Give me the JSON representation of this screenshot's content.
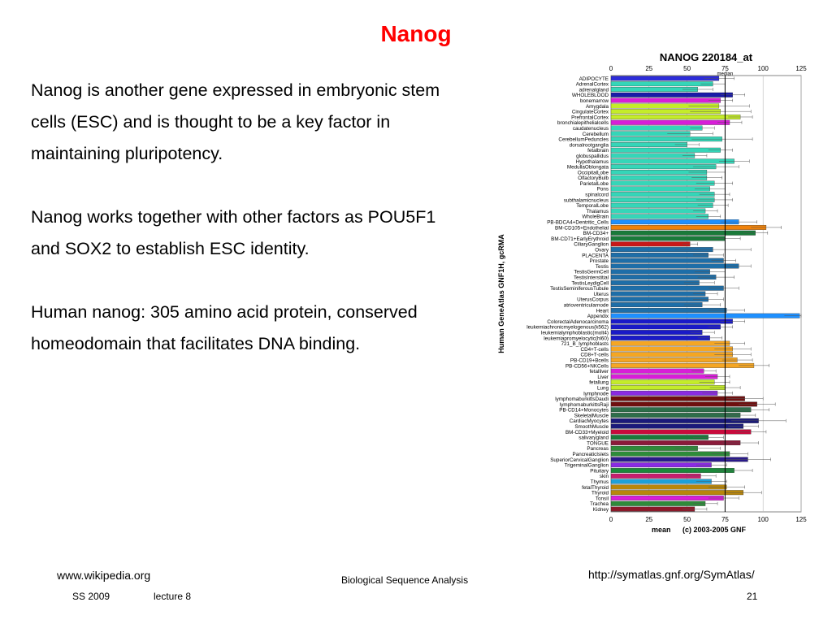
{
  "slide": {
    "title": "Nanog",
    "title_color": "#ff0000",
    "paragraphs": [
      "Nanog is another gene expressed in embryonic stem cells (ESC) and is thought to be a key factor in maintaining pluripotency.",
      "Nanog works together with other factors as POU5F1 and SOX2 to establish ESC identity.",
      "Human nanog: 305 amino acid protein, conserved homeodomain that facilitates DNA binding."
    ]
  },
  "footer": {
    "source_left": "www.wikipedia.org",
    "source_right": "http://symatlas.gnf.org/SymAtlas/",
    "course": "Biological Sequence Analysis",
    "semester": "SS 2009",
    "lecture": "lecture 8",
    "page": "21"
  },
  "chart_data": {
    "type": "bar",
    "orientation": "horizontal",
    "title": "NANOG 220184_at",
    "ylabel": "Human GeneAtlas GNF1H, gcRMA",
    "xlabel_mean": "mean",
    "copyright": "(c) 2003-2005 GNF",
    "median_label": "median",
    "median": 75,
    "xlim": [
      0,
      125
    ],
    "xticks": [
      0,
      25,
      50,
      75,
      100,
      125
    ],
    "grid": true,
    "categories": [
      "ADIPOCYTE",
      "AdrenalCortex",
      "adrenalgland",
      "WHOLEBLOOD",
      "bonemarrow",
      "Amygdala",
      "CingulateCortex",
      "PrefrontalCortex",
      "bronchialepithelialcells",
      "caudatenucleus",
      "Cerebellum",
      "CerebellumPeduncles",
      "dorsalrootganglia",
      "fetalbrain",
      "globuspallidus",
      "Hypothalamus",
      "MedullaOblongata",
      "OccipitalLobe",
      "OlfactoryBulb",
      "ParietalLobe",
      "Pons",
      "spinalcord",
      "subthalamicnucleus",
      "TemporalLobe",
      "Thalamus",
      "WholeBrain",
      "PB-BDCA4+Dentritic_Cells",
      "BM-CD105+Endothelial",
      "BM-CD34+",
      "BM-CD71+EarlyErythroid",
      "CiliaryGanglion",
      "Ovary",
      "PLACENTA",
      "Prostate",
      "Testis",
      "TestisGermCell",
      "TestisInterstitial",
      "TestisLeydigCell",
      "TestisSeminiferousTubule",
      "Uterus",
      "UterusCorpus",
      "atrioventricularnode",
      "Heart",
      "Appendix",
      "ColorectalAdenocarcinoma",
      "leukemiachronicmyelogenous(k562)",
      "leukemialymphoblastic(molt4)",
      "leukemiapromyelocytic(hl60)",
      "721_B_lymphoblasts",
      "CD4+T-cells",
      "CD8+T-cells",
      "PB-CD19+Bcells",
      "PB-CD56+NKCells",
      "fetalliver",
      "Liver",
      "fetallung",
      "Lung",
      "lymphnode",
      "lymphomaburkittsDaudi",
      "lymphomaburkittsRaji",
      "PB-CD14+Monocytes",
      "SkeletalMuscle",
      "CardiacMyocytes",
      "SmoothMuscle",
      "BM-CD33+Myeloid",
      "salivarygland",
      "TONGUE",
      "Pancreas",
      "PancreaticIslets",
      "SuperiorCervicalGanglion",
      "TrigeminalGanglion",
      "Pituitary",
      "skin",
      "Thymus",
      "fetalThyroid",
      "Thyroid",
      "Tonsil",
      "Trachea",
      "Kidney"
    ],
    "values": [
      71,
      67,
      57,
      80,
      72,
      71,
      72,
      85,
      78,
      60,
      52,
      73,
      50,
      72,
      55,
      81,
      69,
      63,
      63,
      68,
      65,
      68,
      68,
      67,
      62,
      64,
      84,
      102,
      95,
      75,
      52,
      67,
      64,
      74,
      84,
      65,
      69,
      58,
      74,
      62,
      64,
      60,
      76,
      124,
      80,
      72,
      60,
      65,
      78,
      80,
      80,
      83,
      94,
      61,
      70,
      68,
      75,
      70,
      88,
      96,
      92,
      85,
      97,
      87,
      92,
      64,
      85,
      57,
      78,
      90,
      66,
      81,
      59,
      66,
      76,
      87,
      74,
      62,
      55
    ],
    "errors": [
      10,
      8,
      10,
      8,
      8,
      20,
      20,
      8,
      8,
      8,
      15,
      20,
      8,
      8,
      8,
      10,
      15,
      12,
      10,
      12,
      10,
      10,
      12,
      10,
      8,
      8,
      12,
      10,
      8,
      10,
      5,
      25,
      10,
      8,
      8,
      10,
      12,
      10,
      10,
      8,
      10,
      12,
      12,
      10,
      8,
      8,
      8,
      8,
      10,
      12,
      12,
      10,
      10,
      8,
      8,
      10,
      10,
      10,
      12,
      12,
      12,
      10,
      18,
      10,
      10,
      10,
      12,
      15,
      12,
      15,
      10,
      12,
      10,
      10,
      12,
      12,
      10,
      8,
      8
    ],
    "colors": [
      "#2d2cd8",
      "#35d6b8",
      "#35d6b8",
      "#1a1aa8",
      "#d81ed8",
      "#c4ec2a",
      "#c4ec2a",
      "#c4ec2a",
      "#d81ed8",
      "#35d6b8",
      "#35d6b8",
      "#35d6b8",
      "#35d6b8",
      "#35d6b8",
      "#35d6b8",
      "#35d6b8",
      "#35d6b8",
      "#35d6b8",
      "#35d6b8",
      "#35d6b8",
      "#35d6b8",
      "#35d6b8",
      "#35d6b8",
      "#35d6b8",
      "#35d6b8",
      "#35d6b8",
      "#1e90ff",
      "#f0820a",
      "#1a7a3a",
      "#1a7a3a",
      "#c81818",
      "#1e6ea8",
      "#1e6ea8",
      "#1e6ea8",
      "#1e6ea8",
      "#1e6ea8",
      "#1e6ea8",
      "#1e6ea8",
      "#1e6ea8",
      "#1e6ea8",
      "#1e6ea8",
      "#1e6ea8",
      "#1e6ea8",
      "#1e90ff",
      "#1a1ac8",
      "#1a1ac8",
      "#1a1ac8",
      "#1a1ac8",
      "#f5a623",
      "#f5a623",
      "#f5a623",
      "#f5a623",
      "#f5a623",
      "#d81ed8",
      "#d81ed8",
      "#c4ec2a",
      "#c4ec2a",
      "#8a2be2",
      "#6e0f0f",
      "#6e0f0f",
      "#2d6e4a",
      "#2d6e4a",
      "#1a1a7a",
      "#1a1a7a",
      "#c80a3c",
      "#1a7a3a",
      "#8b1a3a",
      "#2e8b3a",
      "#2e8b3a",
      "#2a1a8a",
      "#8a2be2",
      "#1a8a3a",
      "#c81e6e",
      "#1ea0d8",
      "#b8860b",
      "#b8860b",
      "#d81ed8",
      "#2e8b3a",
      "#8b1a2a"
    ]
  }
}
